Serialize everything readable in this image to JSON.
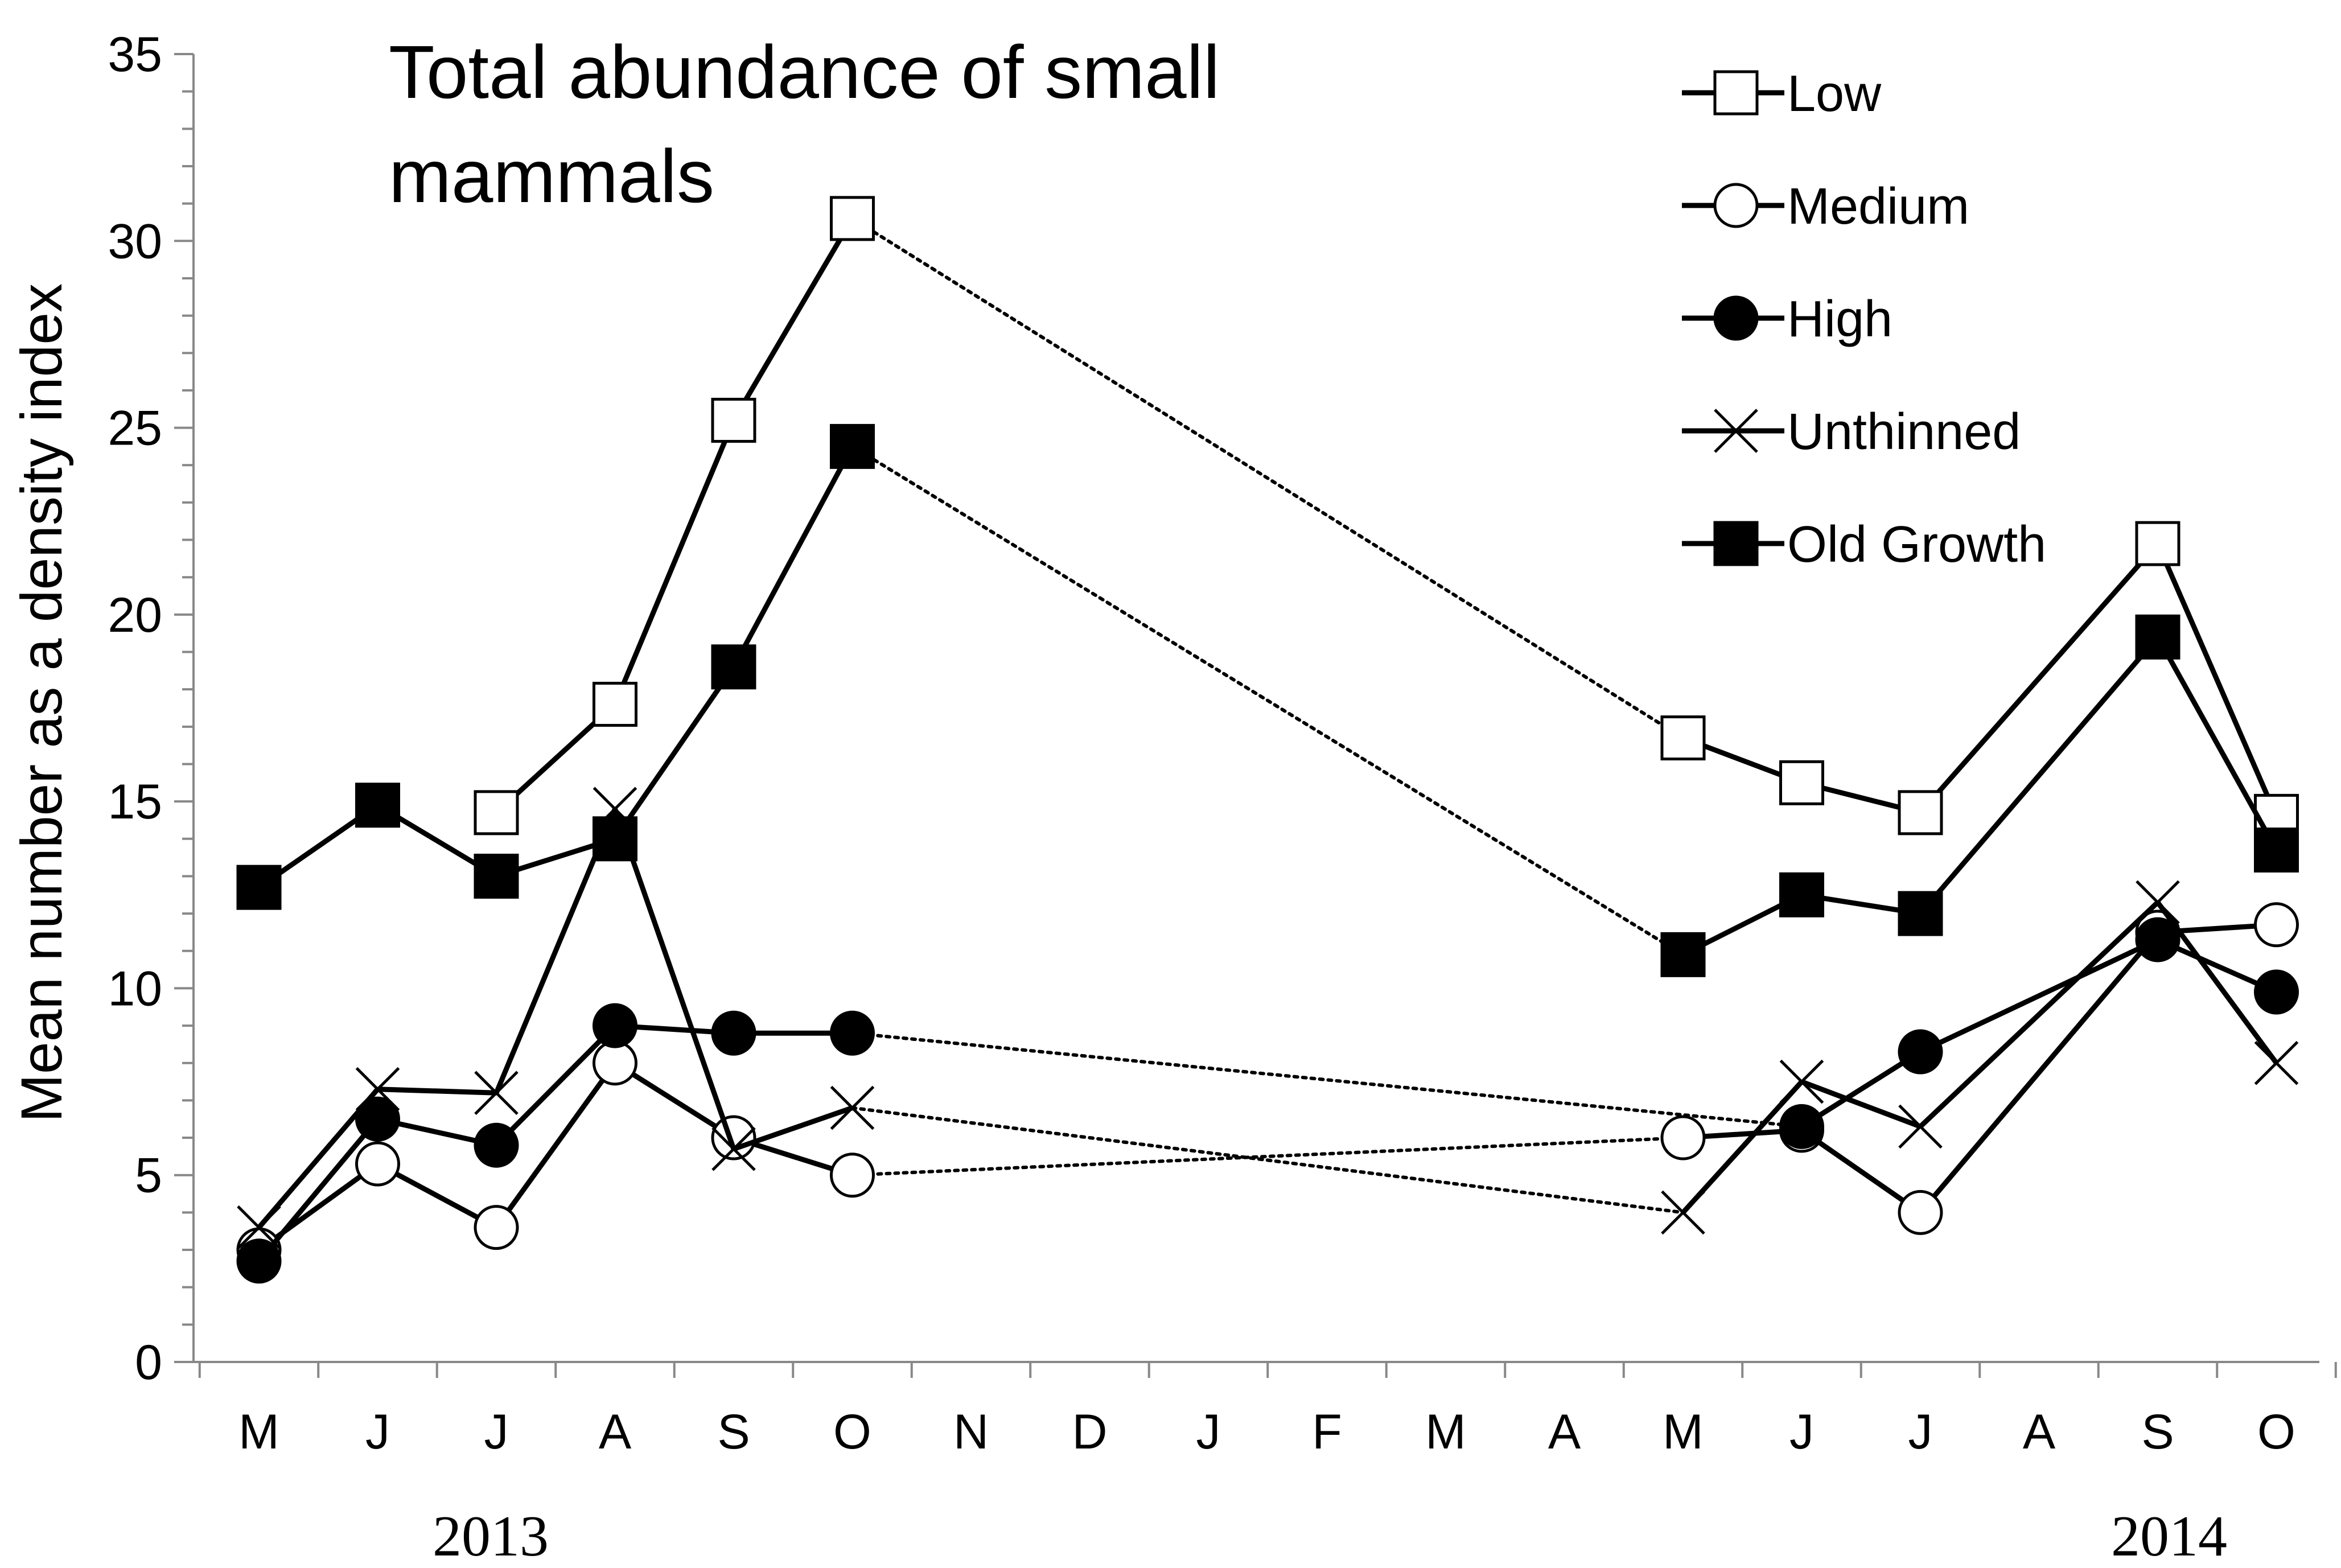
{
  "chart_data": {
    "type": "line",
    "title_lines": [
      "Total abundance of small",
      "mammals"
    ],
    "ylabel": "Mean number as a density index",
    "xlabel": "",
    "ylim": [
      0,
      35
    ],
    "y_ticks": [
      0,
      5,
      10,
      15,
      20,
      25,
      30,
      35
    ],
    "categories": [
      "M",
      "J",
      "J",
      "A",
      "S",
      "O",
      "N",
      "D",
      "J",
      "F",
      "M",
      "A",
      "M",
      "J",
      "J",
      "A",
      "S",
      "O"
    ],
    "year_labels": [
      "2013",
      "2014"
    ],
    "gap": {
      "from_index": 5,
      "to_index": 12,
      "style": "dotted"
    },
    "series": [
      {
        "name": "Low",
        "marker": "square-open",
        "values": [
          null,
          null,
          14.7,
          17.6,
          25.2,
          30.6,
          null,
          null,
          null,
          null,
          null,
          null,
          16.7,
          15.5,
          14.7,
          null,
          21.9,
          14.6
        ]
      },
      {
        "name": "Medium",
        "marker": "circle-open",
        "values": [
          3.0,
          5.3,
          3.6,
          8.0,
          6.0,
          5.0,
          null,
          null,
          null,
          null,
          null,
          null,
          6.0,
          6.2,
          4.0,
          null,
          11.5,
          11.7
        ]
      },
      {
        "name": "High",
        "marker": "circle-filled",
        "values": [
          2.7,
          6.5,
          5.8,
          9.0,
          8.8,
          8.8,
          null,
          null,
          null,
          null,
          null,
          null,
          null,
          6.3,
          8.3,
          null,
          11.3,
          9.9
        ]
      },
      {
        "name": "Unthinned",
        "marker": "x",
        "values": [
          3.6,
          7.3,
          7.2,
          14.8,
          5.7,
          6.8,
          null,
          null,
          null,
          null,
          null,
          null,
          4.0,
          7.5,
          6.3,
          null,
          12.3,
          8.0
        ]
      },
      {
        "name": "Old Growth",
        "marker": "square-filled",
        "values": [
          12.7,
          14.9,
          13.0,
          14.0,
          18.6,
          24.5,
          null,
          null,
          null,
          null,
          null,
          null,
          10.9,
          12.5,
          12.0,
          null,
          19.4,
          13.7
        ]
      }
    ],
    "legend_position": "top-right",
    "grid": false
  }
}
